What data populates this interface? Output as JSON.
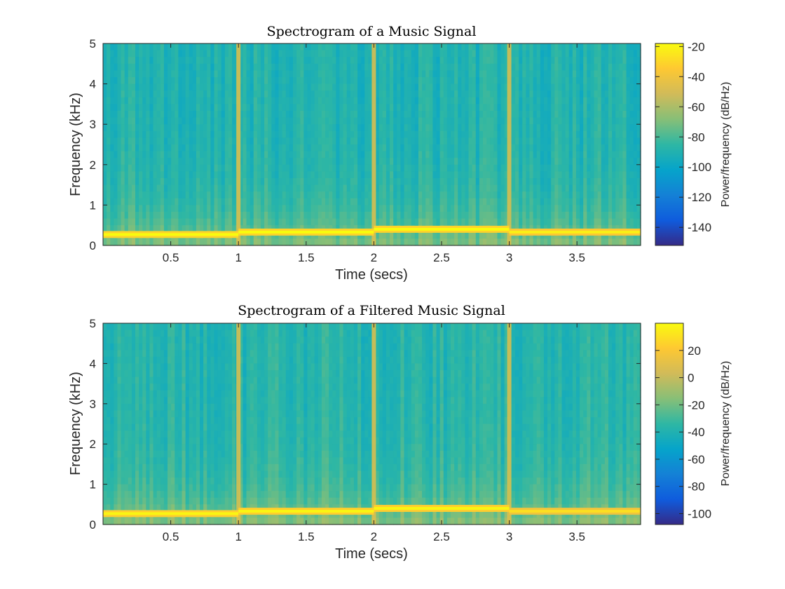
{
  "chart_data": [
    {
      "type": "heatmap",
      "title": "Spectrogram of a Music Signal",
      "xlabel": "Time (secs)",
      "ylabel": "Frequency (kHz)",
      "xlim": [
        0,
        3.97
      ],
      "ylim": [
        0,
        5
      ],
      "xticks": [
        0.5,
        1,
        1.5,
        2,
        2.5,
        3,
        3.5
      ],
      "xtick_labels": [
        "0.5",
        "1",
        "1.5",
        "2",
        "2.5",
        "3",
        "3.5"
      ],
      "yticks": [
        0,
        1,
        2,
        3,
        4,
        5
      ],
      "ytick_labels": [
        "0",
        "1",
        "2",
        "3",
        "4",
        "5"
      ],
      "colorbar": {
        "label": "Power/frequency (dB/Hz)",
        "range": [
          -152,
          -18
        ],
        "ticks": [
          -20,
          -40,
          -60,
          -80,
          -100,
          -120,
          -140
        ],
        "tick_labels": [
          "-20",
          "-40",
          "-60",
          "-80",
          "-100",
          "-120",
          "-140"
        ]
      },
      "tones": [
        {
          "t_start": 0,
          "t_end": 1,
          "freq_khz": 0.27,
          "level_db": -18
        },
        {
          "t_start": 1,
          "t_end": 2,
          "freq_khz": 0.33,
          "level_db": -18
        },
        {
          "t_start": 2,
          "t_end": 3,
          "freq_khz": 0.4,
          "level_db": -18
        },
        {
          "t_start": 3,
          "t_end": 3.97,
          "freq_khz": 0.33,
          "level_db": -22
        }
      ],
      "background_level_db": -90,
      "transients_s": [
        1,
        2,
        3
      ]
    },
    {
      "type": "heatmap",
      "title": "Spectrogram of a Filtered Music Signal",
      "xlabel": "Time (secs)",
      "ylabel": "Frequency (kHz)",
      "xlim": [
        0,
        3.97
      ],
      "ylim": [
        0,
        5
      ],
      "xticks": [
        0.5,
        1,
        1.5,
        2,
        2.5,
        3,
        3.5
      ],
      "xtick_labels": [
        "0.5",
        "1",
        "1.5",
        "2",
        "2.5",
        "3",
        "3.5"
      ],
      "yticks": [
        0,
        1,
        2,
        3,
        4,
        5
      ],
      "ytick_labels": [
        "0",
        "1",
        "2",
        "3",
        "4",
        "5"
      ],
      "colorbar": {
        "label": "Power/frequency (dB/Hz)",
        "range": [
          -108,
          40
        ],
        "ticks": [
          20,
          0,
          -20,
          -40,
          -60,
          -80,
          -100
        ],
        "tick_labels": [
          "20",
          "0",
          "-20",
          "-40",
          "-60",
          "-80",
          "-100"
        ]
      },
      "tones": [
        {
          "t_start": 0,
          "t_end": 1,
          "freq_khz": 0.27,
          "level_db": 38
        },
        {
          "t_start": 1,
          "t_end": 2,
          "freq_khz": 0.33,
          "level_db": 38
        },
        {
          "t_start": 2,
          "t_end": 3,
          "freq_khz": 0.4,
          "level_db": 38
        },
        {
          "t_start": 3,
          "t_end": 3.97,
          "freq_khz": 0.33,
          "level_db": 30
        }
      ],
      "background_level_db": -38,
      "transients_s": [
        1,
        2,
        3
      ]
    }
  ]
}
